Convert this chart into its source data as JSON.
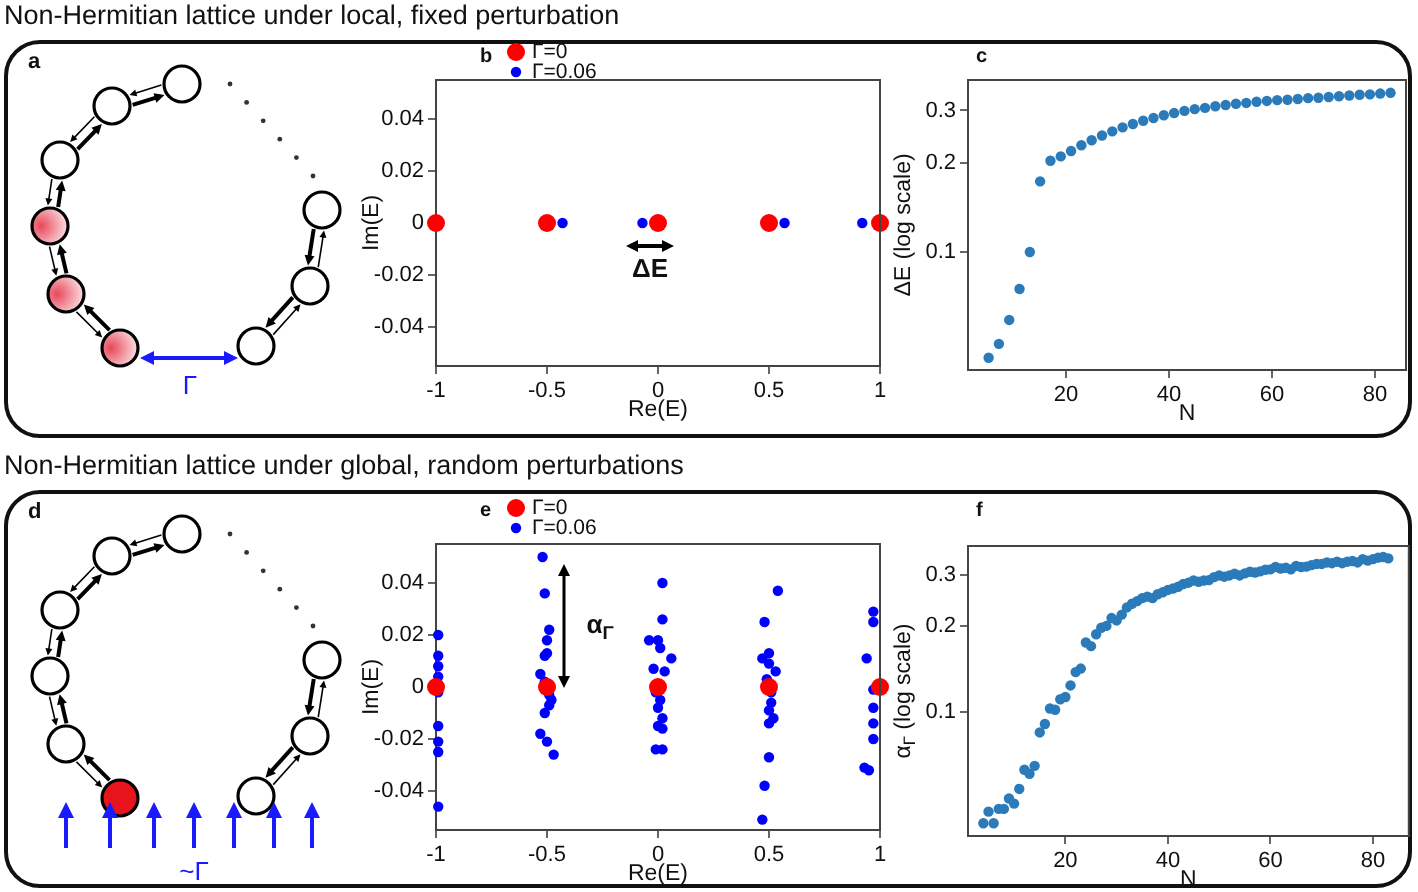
{
  "chart_data": [
    {
      "type": "other",
      "title": "Non-Hermitian lattice under local, fixed perturbation",
      "annotations": [
        "a",
        "Γ"
      ]
    },
    {
      "type": "scatter",
      "annotations": [
        "b",
        "ΔE"
      ],
      "xlabel": "Re(E)",
      "ylabel": "Im(E)",
      "xlim": [
        -1,
        1
      ],
      "xticks": [
        -1,
        -0.5,
        0,
        0.5,
        1
      ],
      "ylim": [
        -0.055,
        0.055
      ],
      "yticks": [
        -0.04,
        -0.02,
        0,
        0.02,
        0.04
      ],
      "legend": "top left",
      "marker": "circle",
      "series": [
        {
          "name": "Γ=0",
          "color": "#ff0000",
          "x": [
            -1,
            -0.5,
            0,
            0.5,
            1
          ],
          "values": [
            0,
            0,
            0,
            0,
            0
          ]
        },
        {
          "name": "Γ=0.06",
          "color": "#0000ff",
          "x": [
            -0.43,
            -0.07,
            0.57,
            0.92
          ],
          "values": [
            0,
            0,
            0,
            0
          ]
        }
      ]
    },
    {
      "type": "scatter",
      "annotations": [
        "c"
      ],
      "xlabel": "N",
      "ylabel": "ΔE (log scale)",
      "log": "y",
      "xlim": [
        1,
        86
      ],
      "xticks": [
        20,
        40,
        60,
        80
      ],
      "ylim": [
        0.04,
        0.38
      ],
      "yticks": [
        0.1,
        0.2,
        0.3
      ],
      "marker": "circle",
      "series": [
        {
          "color": "#2b7bba",
          "x": [
            5,
            7,
            9,
            11,
            13,
            15,
            17,
            19,
            21,
            23,
            25,
            27,
            29,
            31,
            33,
            35,
            37,
            39,
            41,
            43,
            45,
            47,
            49,
            51,
            53,
            55,
            57,
            59,
            61,
            63,
            65,
            67,
            69,
            71,
            73,
            75,
            77,
            79,
            81,
            83
          ],
          "values": [
            0.044,
            0.049,
            0.059,
            0.075,
            0.1,
            0.173,
            0.203,
            0.21,
            0.219,
            0.229,
            0.238,
            0.247,
            0.255,
            0.263,
            0.27,
            0.277,
            0.283,
            0.289,
            0.294,
            0.299,
            0.303,
            0.306,
            0.31,
            0.313,
            0.316,
            0.318,
            0.321,
            0.323,
            0.325,
            0.326,
            0.328,
            0.33,
            0.331,
            0.333,
            0.335,
            0.337,
            0.339,
            0.34,
            0.342,
            0.344
          ]
        }
      ]
    },
    {
      "type": "other",
      "title": "Non-Hermitian lattice under global, random perturbations",
      "annotations": [
        "d",
        "~Γ"
      ]
    },
    {
      "type": "scatter",
      "annotations": [
        "e",
        "α$_{Γ}$"
      ],
      "xlabel": "Re(E)",
      "ylabel": "Im(E)",
      "xlim": [
        -1,
        1
      ],
      "xticks": [
        -1,
        -0.5,
        0,
        0.5,
        1
      ],
      "ylim": [
        -0.055,
        0.055
      ],
      "yticks": [
        -0.04,
        -0.02,
        0,
        0.02,
        0.04
      ],
      "legend": "top left",
      "marker": "circle",
      "series": [
        {
          "name": "Γ=0",
          "color": "#ff0000",
          "x": [
            -1,
            -0.5,
            0,
            0.5,
            1
          ],
          "values": [
            0,
            0,
            0,
            0,
            0
          ]
        },
        {
          "name": "Γ=0.06",
          "color": "#0000ff",
          "x": [
            -0.52,
            -0.51,
            -0.49,
            -0.5,
            -0.5,
            -0.51,
            -0.53,
            -0.51,
            -0.48,
            -0.49,
            -0.51,
            -0.53,
            -0.5,
            -0.47,
            -0.49,
            0.02,
            0.02,
            -0.04,
            0,
            0.01,
            0.06,
            -0.02,
            0.03,
            -0.01,
            0.01,
            0,
            0.02,
            0,
            0.02,
            -0.01,
            0.02,
            0.54,
            0.48,
            0.47,
            0.5,
            0.53,
            0.49,
            0.51,
            0.51,
            0.5,
            0.52,
            0.5,
            0.5,
            0.48,
            0.47,
            0.5,
            0.97,
            0.97,
            0.94,
            0.97,
            0.97,
            0.97,
            0.97,
            0.93,
            0.95,
            -0.99,
            -0.99,
            -0.99,
            -0.99,
            -0.99,
            -0.99,
            -0.99,
            -0.99,
            -0.99
          ],
          "values": [
            0.05,
            0.036,
            0.022,
            0.018,
            0.013,
            0.012,
            0.005,
            0.002,
            -0.005,
            -0.007,
            -0.01,
            -0.018,
            -0.021,
            -0.026,
            -0.003,
            0.04,
            0.026,
            0.018,
            0.018,
            0.015,
            0.011,
            0.007,
            0.006,
            -0.002,
            -0.005,
            -0.008,
            -0.012,
            -0.015,
            -0.016,
            -0.024,
            -0.024,
            0.037,
            0.025,
            0.011,
            0.013,
            0.006,
            0.003,
            -0.002,
            -0.006,
            -0.009,
            -0.012,
            -0.014,
            -0.027,
            -0.038,
            -0.051,
            0.009,
            0.029,
            0.025,
            0.011,
            -0.001,
            -0.008,
            -0.014,
            -0.02,
            -0.031,
            -0.032,
            0.02,
            0.012,
            0.008,
            0.004,
            -0.002,
            -0.015,
            -0.021,
            -0.025,
            -0.046
          ]
        }
      ]
    },
    {
      "type": "scatter",
      "annotations": [
        "f"
      ],
      "xlabel": "N",
      "ylabel": "α$_{Γ}$ (log scale)",
      "log": "y",
      "xlim": [
        1,
        87
      ],
      "xticks": [
        20,
        40,
        60,
        80
      ],
      "ylim": [
        0.037,
        0.38
      ],
      "yticks": [
        0.1,
        0.2,
        0.3
      ],
      "marker": "circle",
      "series": [
        {
          "color": "#2b7bba",
          "x": [
            4,
            5,
            6,
            7,
            8,
            9,
            10,
            11,
            12,
            13,
            14,
            15,
            16,
            17,
            18,
            19,
            20,
            21,
            22,
            23,
            24,
            25,
            26,
            27,
            28,
            29,
            30,
            31,
            32,
            33,
            34,
            35,
            36,
            37,
            38,
            39,
            40,
            41,
            42,
            43,
            44,
            45,
            46,
            47,
            48,
            49,
            50,
            51,
            52,
            53,
            54,
            55,
            56,
            57,
            58,
            59,
            60,
            61,
            62,
            63,
            64,
            65,
            66,
            67,
            68,
            69,
            70,
            71,
            72,
            73,
            74,
            75,
            76,
            77,
            78,
            79,
            80,
            81,
            82,
            83
          ],
          "values": [
            0.041,
            0.045,
            0.041,
            0.046,
            0.046,
            0.05,
            0.048,
            0.054,
            0.063,
            0.061,
            0.065,
            0.085,
            0.091,
            0.103,
            0.102,
            0.111,
            0.113,
            0.124,
            0.138,
            0.142,
            0.175,
            0.17,
            0.187,
            0.197,
            0.2,
            0.213,
            0.209,
            0.219,
            0.232,
            0.239,
            0.244,
            0.25,
            0.253,
            0.25,
            0.258,
            0.262,
            0.267,
            0.27,
            0.274,
            0.28,
            0.283,
            0.288,
            0.285,
            0.288,
            0.289,
            0.296,
            0.3,
            0.297,
            0.3,
            0.304,
            0.3,
            0.305,
            0.309,
            0.307,
            0.31,
            0.314,
            0.315,
            0.321,
            0.317,
            0.319,
            0.315,
            0.324,
            0.321,
            0.322,
            0.326,
            0.329,
            0.329,
            0.333,
            0.331,
            0.335,
            0.331,
            0.335,
            0.337,
            0.333,
            0.342,
            0.338,
            0.342,
            0.346,
            0.348,
            0.344
          ]
        }
      ]
    }
  ]
}
